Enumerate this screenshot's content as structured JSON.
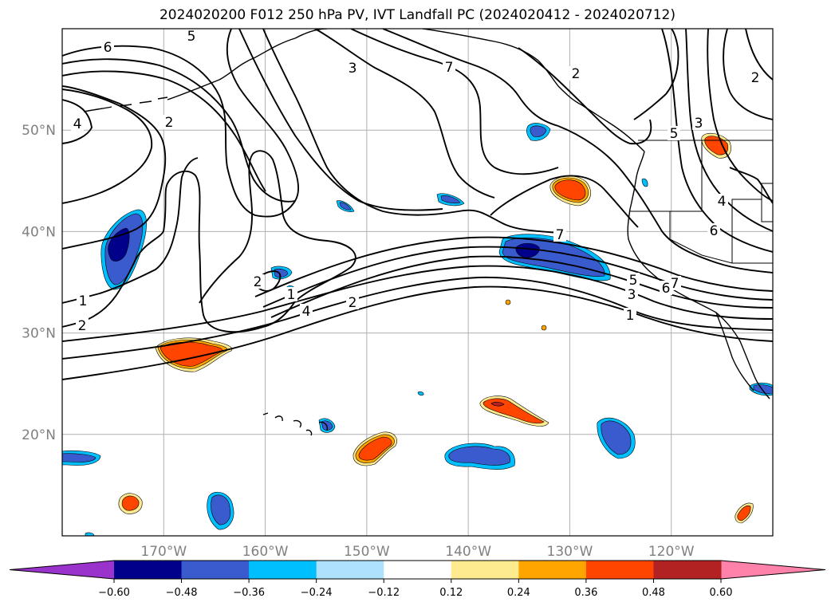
{
  "title": "2024020200 F012 250 hPa PV, IVT Landfall PC (2024020412 - 2024020712)",
  "map": {
    "projection": "PlateCarree",
    "extent_lon": [
      -180,
      -110
    ],
    "extent_lat": [
      10,
      60
    ],
    "gridlines": true,
    "lon_ticks": [
      {
        "lon": -170,
        "label": "170°W"
      },
      {
        "lon": -160,
        "label": "160°W"
      },
      {
        "lon": -150,
        "label": "150°W"
      },
      {
        "lon": -140,
        "label": "140°W"
      },
      {
        "lon": -130,
        "label": "130°W"
      },
      {
        "lon": -120,
        "label": "120°W"
      }
    ],
    "lat_ticks": [
      {
        "lat": 50,
        "label": "50°N"
      },
      {
        "lat": 40,
        "label": "40°N"
      },
      {
        "lat": 30,
        "label": "30°N"
      },
      {
        "lat": 20,
        "label": "20°N"
      }
    ],
    "pv_contour_labels": [
      "6",
      "5",
      "3",
      "7",
      "2",
      "4",
      "2",
      "7",
      "1",
      "2",
      "1",
      "4",
      "2",
      "7",
      "5",
      "3",
      "6",
      "5",
      "3",
      "4",
      "6",
      "1",
      "2",
      "2"
    ]
  },
  "colorbar": {
    "extend": "both",
    "colors": [
      "#9933cc",
      "#00008b",
      "#3a5bcd",
      "#00bfff",
      "#aee1fb",
      "#ffffff",
      "#ffeb8f",
      "#ffa500",
      "#ff4500",
      "#b22222",
      "#ff82aa"
    ],
    "tick_labels": [
      "−0.60",
      "−0.48",
      "−0.36",
      "−0.24",
      "−0.12",
      "0.12",
      "0.24",
      "0.36",
      "0.48",
      "0.60"
    ],
    "tick_values": [
      -0.6,
      -0.48,
      -0.36,
      -0.24,
      -0.12,
      0.12,
      0.24,
      0.36,
      0.48,
      0.6
    ]
  },
  "chart_data": {
    "type": "contour-map",
    "title": "2024020200 F012 250 hPa PV, IVT Landfall PC (2024020412 - 2024020712)",
    "contour_variable": "250 hPa PV",
    "shaded_variable": "IVT Landfall PC",
    "shading_levels": [
      -0.6,
      -0.48,
      -0.36,
      -0.24,
      -0.12,
      0.12,
      0.24,
      0.36,
      0.48,
      0.6
    ],
    "negative_features": [
      {
        "lon": -174.2,
        "lat": 39.0,
        "peak": -0.6
      },
      {
        "lon": -133.5,
        "lat": 38.0,
        "peak": -0.6
      },
      {
        "lon": -137.5,
        "lat": 17.8,
        "peak": -0.48
      },
      {
        "lon": -125.5,
        "lat": 19.7,
        "peak": -0.36
      },
      {
        "lon": -163.5,
        "lat": 12.5,
        "peak": -0.36
      },
      {
        "lon": -177.5,
        "lat": 17.7,
        "peak": -0.36
      }
    ],
    "positive_features": [
      {
        "lon": -169.0,
        "lat": 28.0,
        "peak": 0.48
      },
      {
        "lon": -130.0,
        "lat": 44.3,
        "peak": 0.48
      },
      {
        "lon": -115.5,
        "lat": 48.2,
        "peak": 0.48
      },
      {
        "lon": -149.5,
        "lat": 18.0,
        "peak": 0.48
      },
      {
        "lon": -137.0,
        "lat": 22.5,
        "peak": 0.48
      },
      {
        "lon": -173.0,
        "lat": 13.0,
        "peak": 0.48
      },
      {
        "lon": -112.5,
        "lat": 12.0,
        "peak": 0.36
      }
    ]
  }
}
